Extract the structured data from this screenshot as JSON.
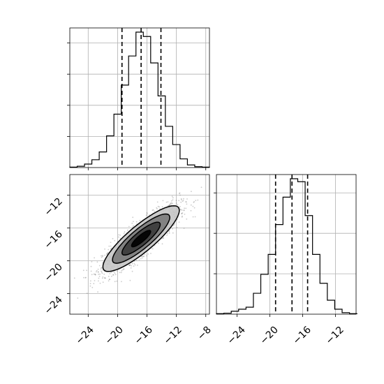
{
  "chart_data": [
    {
      "type": "histogram",
      "panel": "top-left (parameter 1 marginal)",
      "bins_x": [
        -26.5,
        -25.5,
        -24.5,
        -23.5,
        -22.5,
        -21.5,
        -20.5,
        -19.5,
        -18.5,
        -17.5,
        -16.5,
        -15.5,
        -14.5,
        -13.5,
        -12.5,
        -11.5,
        -10.5,
        -9.5,
        -8.5,
        -7.5
      ],
      "counts": [
        1,
        3,
        8,
        18,
        36,
        73,
        123,
        190,
        257,
        312,
        302,
        241,
        165,
        95,
        53,
        20,
        6,
        2,
        1
      ],
      "quantiles": [
        -19.4,
        -16.8,
        -14.1
      ],
      "xlim": [
        -26.5,
        -7.5
      ],
      "ytick_labels": [
        "",
        "",
        "",
        ""
      ],
      "grid": true
    },
    {
      "type": "scatter",
      "panel": "bottom-left (parameter 1 vs parameter 2 joint density)",
      "xlim": [
        -26.5,
        -7.5
      ],
      "ylim": [
        -26.5,
        -9.5
      ],
      "x_ticks": [
        -24,
        -20,
        -16,
        -12,
        -8
      ],
      "y_ticks": [
        -24,
        -20,
        -16,
        -12
      ],
      "x_tick_labels": [
        "−24",
        "−20",
        "−16",
        "−12",
        "−8"
      ],
      "y_tick_labels": [
        "−24",
        "−20",
        "−16",
        "−12"
      ],
      "mean": [
        -16.8,
        -17.3
      ],
      "std": [
        2.6,
        2.0
      ],
      "correlation": 0.86,
      "contour_levels_sigma": [
        0.5,
        1.0,
        1.5,
        2.0
      ],
      "density_shading": [
        "#000000",
        "#3a3a3a",
        "#7a7a7a",
        "#c7c7c7"
      ],
      "sample_color": "#6e6e6e",
      "grid": true
    },
    {
      "type": "histogram",
      "panel": "bottom-right (parameter 2 marginal)",
      "bins_x": [
        -26.5,
        -25.6,
        -24.7,
        -23.8,
        -22.9,
        -22.0,
        -21.1,
        -20.2,
        -19.3,
        -18.4,
        -17.5,
        -16.6,
        -15.7,
        -14.8,
        -13.9,
        -13.0,
        -12.1,
        -11.2,
        -10.3,
        -9.4
      ],
      "counts": [
        1,
        2,
        6,
        10,
        14,
        42,
        80,
        120,
        180,
        235,
        272,
        266,
        198,
        120,
        62,
        28,
        10,
        3,
        1
      ],
      "quantiles": [
        -19.3,
        -17.3,
        -15.4
      ],
      "xlim": [
        -26.5,
        -9.5
      ],
      "x_ticks": [
        -24,
        -20,
        -16,
        -12
      ],
      "x_tick_labels": [
        "−24",
        "−20",
        "−16",
        "−12"
      ],
      "ytick_labels": [
        "",
        "",
        ""
      ],
      "grid": true
    }
  ]
}
